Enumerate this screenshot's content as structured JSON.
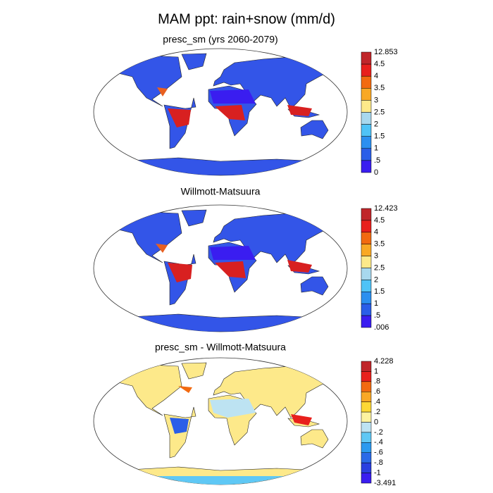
{
  "title": "MAM ppt: rain+snow (mm/d)",
  "panels": [
    {
      "title": "presc_sm (yrs 2060-2079)",
      "colorbar": {
        "labels": [
          "12.853",
          "4.5",
          "4",
          "3.5",
          "3",
          "2.5",
          "2",
          "1.5",
          "1",
          ".5",
          "0"
        ],
        "colors": [
          "#c0262a",
          "#e8201c",
          "#f26a10",
          "#f9a825",
          "#fde98a",
          "#a8d8ee",
          "#4fc3f7",
          "#2b8ff0",
          "#2a5ee8",
          "#3a1df0"
        ]
      }
    },
    {
      "title": "Willmott-Matsuura",
      "colorbar": {
        "labels": [
          "12.423",
          "4.5",
          "4",
          "3.5",
          "3",
          "2.5",
          "2",
          "1.5",
          "1",
          ".5",
          ".006"
        ],
        "colors": [
          "#c0262a",
          "#e8201c",
          "#f26a10",
          "#f9a825",
          "#fde98a",
          "#a8d8ee",
          "#4fc3f7",
          "#2b8ff0",
          "#2a5ee8",
          "#3a1df0"
        ]
      }
    },
    {
      "title": "presc_sm - Willmott-Matsuura",
      "colorbar": {
        "labels": [
          "4.228",
          "1",
          ".8",
          ".6",
          ".4",
          ".2",
          "0",
          "-.2",
          "-.4",
          "-.6",
          "-.8",
          "-1",
          "-3.491"
        ],
        "colors": [
          "#c0262a",
          "#e8201c",
          "#f26a10",
          "#f9a825",
          "#fdd835",
          "#fdf3a0",
          "#bde3f2",
          "#5fc8f5",
          "#2b9af0",
          "#2a6ae8",
          "#2a3fe0",
          "#3a1df0"
        ]
      }
    }
  ]
}
